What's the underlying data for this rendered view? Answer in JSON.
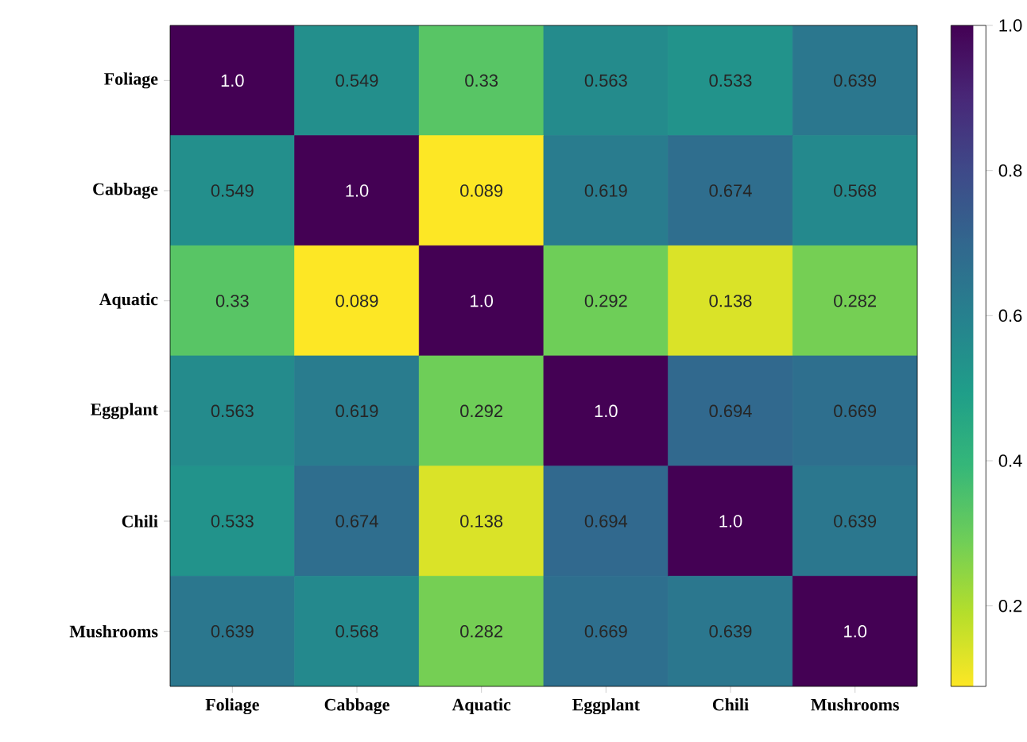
{
  "chart_data": {
    "type": "heatmap",
    "categories": [
      "Foliage",
      "Cabbage",
      "Aquatic",
      "Eggplant",
      "Chili",
      "Mushrooms"
    ],
    "y_categories": [
      "Foliage",
      "Cabbage",
      "Aquatic",
      "Eggplant",
      "Chili",
      "Mushrooms"
    ],
    "cells": [
      [
        1.0,
        0.549,
        0.33,
        0.563,
        0.533,
        0.639
      ],
      [
        0.549,
        1.0,
        0.089,
        0.619,
        0.674,
        0.568
      ],
      [
        0.33,
        0.089,
        1.0,
        0.292,
        0.138,
        0.282
      ],
      [
        0.563,
        0.619,
        0.292,
        1.0,
        0.694,
        0.669
      ],
      [
        0.533,
        0.674,
        0.138,
        0.694,
        1.0,
        0.639
      ],
      [
        0.639,
        0.568,
        0.282,
        0.669,
        0.639,
        1.0
      ]
    ],
    "cell_labels": [
      [
        "1.0",
        "0.549",
        "0.33",
        "0.563",
        "0.533",
        "0.639"
      ],
      [
        "0.549",
        "1.0",
        "0.089",
        "0.619",
        "0.674",
        "0.568"
      ],
      [
        "0.33",
        "0.089",
        "1.0",
        "0.292",
        "0.138",
        "0.282"
      ],
      [
        "0.563",
        "0.619",
        "0.292",
        "1.0",
        "0.694",
        "0.669"
      ],
      [
        "0.533",
        "0.674",
        "0.138",
        "0.694",
        "1.0",
        "0.639"
      ],
      [
        "0.639",
        "0.568",
        "0.282",
        "0.669",
        "0.639",
        "1.0"
      ]
    ],
    "clim": [
      0.089,
      1.0
    ],
    "cticks": [
      0.2,
      0.4,
      0.6,
      0.8,
      {
        "value": 1.0,
        "label": "1.0"
      }
    ]
  }
}
